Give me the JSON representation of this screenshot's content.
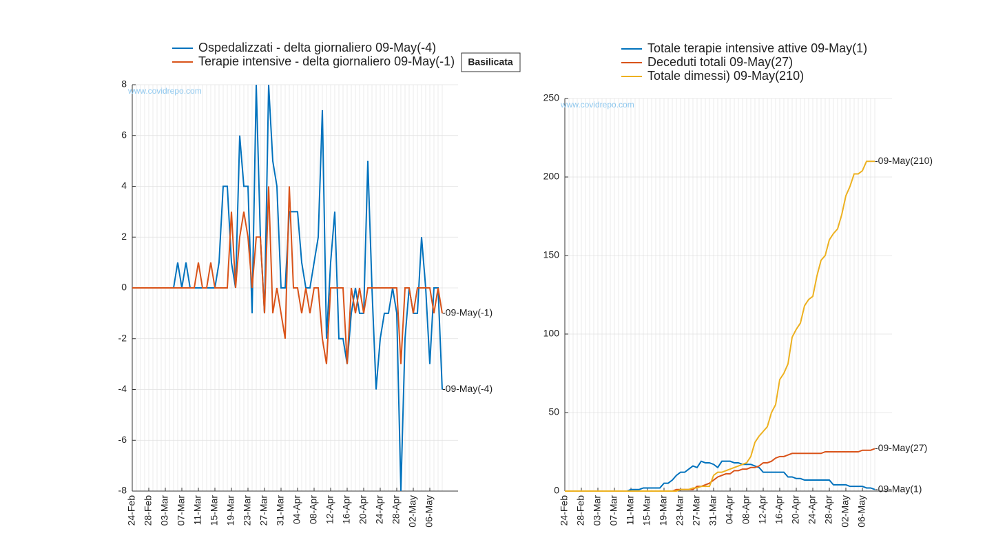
{
  "chart_data": [
    {
      "type": "line",
      "box_label": "Basilicata",
      "watermark": "www.covidrepo.com",
      "categories": [
        "24-Feb",
        null,
        null,
        null,
        "28-Feb",
        null,
        null,
        null,
        "03-Mar",
        null,
        null,
        null,
        "07-Mar",
        null,
        null,
        null,
        "11-Mar",
        null,
        null,
        null,
        "15-Mar",
        null,
        null,
        null,
        "19-Mar",
        null,
        null,
        null,
        "23-Mar",
        null,
        null,
        null,
        "27-Mar",
        null,
        null,
        null,
        "31-Mar",
        null,
        null,
        null,
        "04-Apr",
        null,
        null,
        null,
        "08-Apr",
        null,
        null,
        null,
        "12-Apr",
        null,
        null,
        null,
        "16-Apr",
        null,
        null,
        null,
        "20-Apr",
        null,
        null,
        null,
        "24-Apr",
        null,
        null,
        null,
        "28-Apr",
        null,
        null,
        null,
        "02-May",
        null,
        null,
        null,
        "06-May",
        null,
        null,
        null
      ],
      "ylim": [
        -8,
        8
      ],
      "yticks": [
        -8,
        -6,
        -4,
        -2,
        0,
        2,
        4,
        6,
        8
      ],
      "grid": true,
      "series": [
        {
          "name": "Ospedalizzati - delta giornaliero 09-May(-4)",
          "color": "#0072bd",
          "values": [
            0,
            0,
            0,
            0,
            0,
            0,
            0,
            0,
            0,
            0,
            0,
            1,
            0,
            1,
            0,
            0,
            0,
            0,
            0,
            0,
            0,
            1,
            4,
            4,
            1,
            0,
            6,
            4,
            4,
            -1,
            8,
            2,
            -1,
            8,
            5,
            4,
            0,
            0,
            3,
            3,
            3,
            1,
            0,
            0,
            1,
            2,
            7,
            -2,
            1,
            3,
            -2,
            -2,
            -3,
            -1,
            0,
            -1,
            -1,
            5,
            0,
            -4,
            -2,
            -1,
            -1,
            0,
            -1,
            -8,
            -2,
            0,
            -1,
            -1,
            2,
            0,
            -3,
            0,
            0,
            -4
          ],
          "end_label": "-09-May(-4)"
        },
        {
          "name": "Terapie intensive - delta giornaliero 09-May(-1)",
          "color": "#d95319",
          "values": [
            0,
            0,
            0,
            0,
            0,
            0,
            0,
            0,
            0,
            0,
            0,
            0,
            0,
            0,
            0,
            0,
            1,
            0,
            0,
            1,
            0,
            0,
            0,
            0,
            3,
            0,
            2,
            3,
            2,
            0,
            2,
            2,
            -1,
            4,
            -1,
            0,
            -1,
            -2,
            4,
            0,
            0,
            -1,
            0,
            -1,
            0,
            0,
            -2,
            -3,
            0,
            0,
            0,
            0,
            -3,
            0,
            -1,
            0,
            -1,
            0,
            0,
            0,
            0,
            0,
            0,
            0,
            0,
            -3,
            0,
            0,
            -1,
            0,
            0,
            0,
            0,
            -1,
            0,
            -1
          ],
          "end_label": "-09-May(-1)"
        }
      ]
    },
    {
      "type": "line",
      "watermark": "www.covidrepo.com",
      "categories": [
        "24-Feb",
        null,
        null,
        null,
        "28-Feb",
        null,
        null,
        null,
        "03-Mar",
        null,
        null,
        null,
        "07-Mar",
        null,
        null,
        null,
        "11-Mar",
        null,
        null,
        null,
        "15-Mar",
        null,
        null,
        null,
        "19-Mar",
        null,
        null,
        null,
        "23-Mar",
        null,
        null,
        null,
        "27-Mar",
        null,
        null,
        null,
        "31-Mar",
        null,
        null,
        null,
        "04-Apr",
        null,
        null,
        null,
        "08-Apr",
        null,
        null,
        null,
        "12-Apr",
        null,
        null,
        null,
        "16-Apr",
        null,
        null,
        null,
        "20-Apr",
        null,
        null,
        null,
        "24-Apr",
        null,
        null,
        null,
        "28-Apr",
        null,
        null,
        null,
        "02-May",
        null,
        null,
        null,
        "06-May",
        null,
        null,
        null
      ],
      "ylim": [
        0,
        250
      ],
      "yticks": [
        0,
        50,
        100,
        150,
        200,
        250
      ],
      "grid": true,
      "series": [
        {
          "name": "Totale terapie intensive attive 09-May(1)",
          "color": "#0072bd",
          "values": [
            0,
            0,
            0,
            0,
            0,
            0,
            0,
            0,
            0,
            0,
            0,
            0,
            0,
            0,
            0,
            0,
            1,
            1,
            1,
            2,
            2,
            2,
            2,
            2,
            5,
            5,
            7,
            10,
            12,
            12,
            14,
            16,
            15,
            19,
            18,
            18,
            17,
            15,
            19,
            19,
            19,
            18,
            18,
            17,
            17,
            17,
            16,
            15,
            12,
            12,
            12,
            12,
            12,
            12,
            9,
            9,
            8,
            8,
            7,
            7,
            7,
            7,
            7,
            7,
            7,
            4,
            4,
            4,
            4,
            3,
            3,
            3,
            3,
            2,
            2,
            1
          ],
          "end_label": "-09-May(1)"
        },
        {
          "name": "Deceduti totali 09-May(27)",
          "color": "#d95319",
          "values": [
            0,
            0,
            0,
            0,
            0,
            0,
            0,
            0,
            0,
            0,
            0,
            0,
            0,
            0,
            0,
            0,
            0,
            0,
            0,
            0,
            0,
            0,
            0,
            0,
            0,
            0,
            0,
            1,
            1,
            1,
            1,
            1,
            3,
            3,
            4,
            5,
            7,
            9,
            10,
            11,
            11,
            13,
            13,
            14,
            14,
            15,
            15,
            16,
            18,
            18,
            19,
            21,
            22,
            22,
            23,
            24,
            24,
            24,
            24,
            24,
            24,
            24,
            24,
            25,
            25,
            25,
            25,
            25,
            25,
            25,
            25,
            25,
            26,
            26,
            26,
            27
          ],
          "end_label": "-09-May(27)"
        },
        {
          "name": "Totale dimessi) 09-May(210)",
          "color": "#edb120",
          "values": [
            0,
            0,
            0,
            0,
            0,
            0,
            0,
            0,
            0,
            0,
            0,
            0,
            0,
            0,
            0,
            0,
            0,
            0,
            0,
            0,
            0,
            0,
            0,
            0,
            0,
            0,
            0,
            0,
            1,
            1,
            1,
            2,
            2,
            3,
            3,
            3,
            10,
            12,
            12,
            13,
            14,
            15,
            16,
            17,
            18,
            22,
            31,
            35,
            38,
            41,
            50,
            55,
            71,
            75,
            81,
            98,
            103,
            107,
            118,
            122,
            124,
            137,
            147,
            150,
            160,
            164,
            167,
            176,
            188,
            194,
            202,
            202,
            204,
            210,
            210,
            210
          ],
          "end_label": "-09-May(210)"
        }
      ]
    }
  ]
}
